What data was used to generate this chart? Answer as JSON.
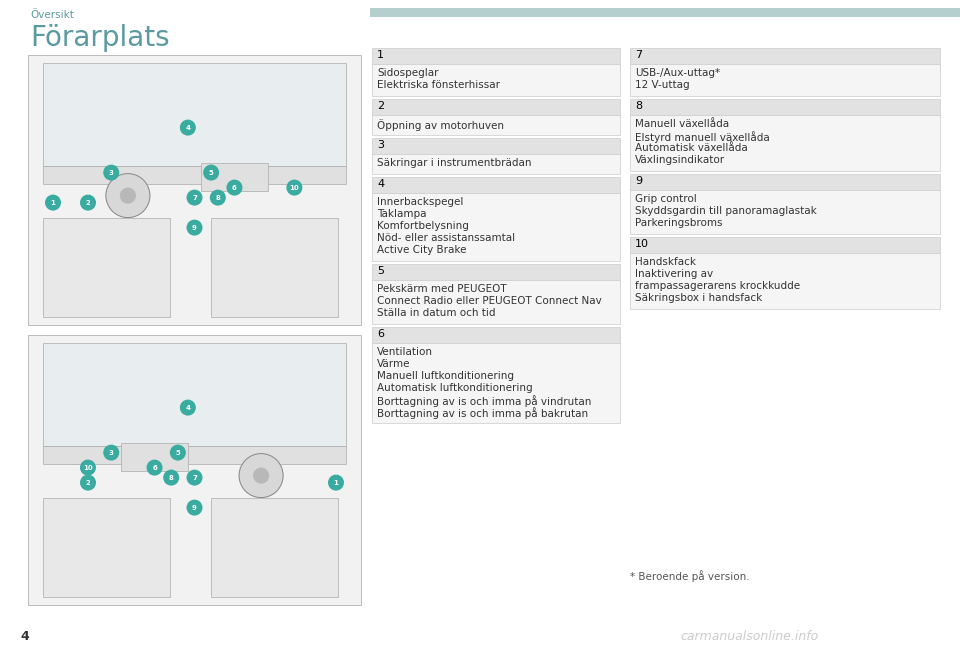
{
  "page_bg": "#ffffff",
  "header_text": "Översikt",
  "header_color": "#5b9aa0",
  "header_bar_color": "#b5cfcf",
  "title_text": "Förarplats",
  "title_color": "#5b9aa0",
  "page_number": "4",
  "footnote": "* Beroende på version.",
  "watermark": "carmanualsonline.info",
  "left_panel_items": [
    {
      "number": "1",
      "lines": [
        "Sidospeglar",
        "Elektriska fönsterhissar"
      ]
    },
    {
      "number": "2",
      "lines": [
        "Öppning av motorhuven"
      ]
    },
    {
      "number": "3",
      "lines": [
        "Säkringar i instrumentbrädan"
      ]
    },
    {
      "number": "4",
      "lines": [
        "Innerbackspegel",
        "Taklampa",
        "Komfortbelysning",
        "Nöd- eller assistanssamtal",
        "Active City Brake"
      ]
    },
    {
      "number": "5",
      "lines": [
        "Pekskärm med PEUGEOT",
        "Connect Radio eller PEUGEOT Connect Nav",
        "Ställa in datum och tid"
      ]
    },
    {
      "number": "6",
      "lines": [
        "Ventilation",
        "Värme",
        "Manuell luftkonditionering",
        "Automatisk luftkonditionering",
        "Borttagning av is och imma på vindrutan",
        "Borttagning av is och imma på bakrutan"
      ]
    }
  ],
  "right_panel_items": [
    {
      "number": "7",
      "lines": [
        "USB-/Aux-uttag*",
        "12 V-uttag"
      ]
    },
    {
      "number": "8",
      "lines": [
        "Manuell växellåda",
        "Elstyrd manuell växellåda",
        "Automatisk växellåda",
        "Växlingsindikator"
      ]
    },
    {
      "number": "9",
      "lines": [
        "Grip control",
        "Skyddsgardin till panoramaglastak",
        "Parkeringsbroms"
      ]
    },
    {
      "number": "10",
      "lines": [
        "Handskfack",
        "Inaktivering av",
        "frampassagerarens krockkudde",
        "Säkringsbox i handsfack"
      ]
    }
  ],
  "box_header_bg": "#e2e2e2",
  "box_border": "#cccccc",
  "box_content_bg": "#f5f5f5",
  "number_color": "#000000",
  "text_color": "#333333",
  "font_size_number": 8,
  "font_size_text": 7.5,
  "font_size_header": 7.5,
  "font_size_title": 20
}
